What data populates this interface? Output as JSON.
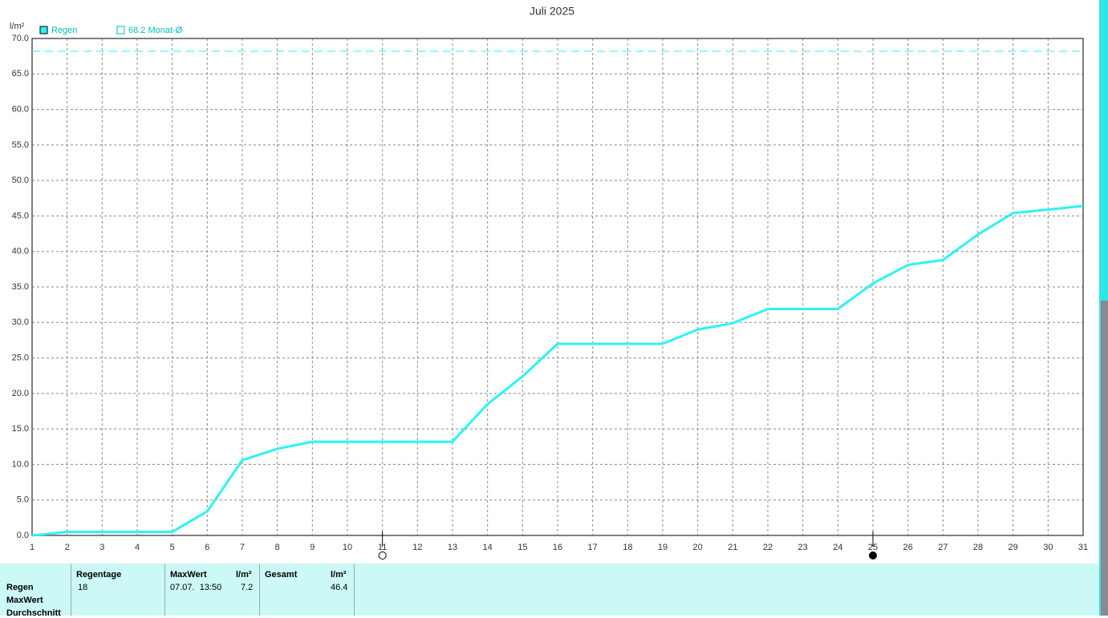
{
  "chart_data": {
    "type": "line",
    "title": "Juli 2025",
    "y_unit": "l/m²",
    "x": [
      1,
      2,
      3,
      4,
      5,
      6,
      7,
      8,
      9,
      10,
      11,
      12,
      13,
      14,
      15,
      16,
      17,
      18,
      19,
      20,
      21,
      22,
      23,
      24,
      25,
      26,
      27,
      28,
      29,
      30,
      31
    ],
    "series": [
      {
        "name": "Regen",
        "color": "#2ef2f2",
        "values": [
          0.0,
          0.5,
          0.5,
          0.5,
          0.5,
          3.4,
          10.6,
          12.2,
          13.2,
          13.2,
          13.2,
          13.2,
          13.2,
          18.5,
          22.4,
          27.0,
          27.0,
          27.0,
          27.0,
          29.0,
          29.9,
          31.9,
          31.9,
          31.9,
          35.5,
          38.1,
          38.8,
          42.4,
          45.4,
          45.9,
          46.4
        ]
      }
    ],
    "reference": {
      "value": 68.2,
      "label": "68.2 Monat-Ø",
      "color": "#2ef2f2"
    },
    "moon_phases": [
      {
        "x": 11,
        "filled": false
      },
      {
        "x": 25,
        "filled": true
      }
    ],
    "xlim": [
      1,
      31
    ],
    "xticks": [
      1,
      2,
      3,
      4,
      5,
      6,
      7,
      8,
      9,
      10,
      11,
      12,
      13,
      14,
      15,
      16,
      17,
      18,
      19,
      20,
      21,
      22,
      23,
      24,
      25,
      26,
      27,
      28,
      29,
      30,
      31
    ],
    "ylim": [
      0,
      70
    ],
    "yticks": [
      {
        "value": 0,
        "label": "0.0"
      },
      {
        "value": 5,
        "label": "5.0"
      },
      {
        "value": 10,
        "label": "10.0"
      },
      {
        "value": 15,
        "label": "15.0"
      },
      {
        "value": 20,
        "label": "20.0"
      },
      {
        "value": 25,
        "label": "25.0"
      },
      {
        "value": 30,
        "label": "30.0"
      },
      {
        "value": 35,
        "label": "35.0"
      },
      {
        "value": 40,
        "label": "40.0"
      },
      {
        "value": 45,
        "label": "45.0"
      },
      {
        "value": 50,
        "label": "50.0"
      },
      {
        "value": 55,
        "label": "55.0"
      },
      {
        "value": 60,
        "label": "60.0"
      },
      {
        "value": 65,
        "label": "65.0"
      },
      {
        "value": 70,
        "label": "70.0"
      }
    ],
    "grid": true
  },
  "table": {
    "row_labels": [
      "Regen",
      "MaxWert",
      "Durchschnitt"
    ],
    "regentage": {
      "header": "Regentage",
      "value": 18
    },
    "maxwert": {
      "header": "MaxWert",
      "unit": "l/m²",
      "date": "07.07.  13:50",
      "value": 7.2
    },
    "gesamt": {
      "header": "Gesamt",
      "unit": "l/m²",
      "value": 46.4
    }
  }
}
